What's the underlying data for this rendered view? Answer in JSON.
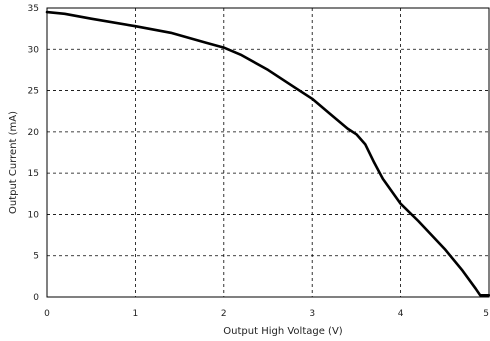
{
  "chart_data": {
    "type": "line",
    "title": "",
    "xlabel": "Output High Voltage (V)",
    "ylabel": "Output Current (mA)",
    "xlim": [
      0,
      5
    ],
    "ylim": [
      0,
      35
    ],
    "xticks": [
      "0",
      "1",
      "2",
      "3",
      "4",
      "5"
    ],
    "yticks": [
      "0",
      "5",
      "10",
      "15",
      "20",
      "25",
      "30",
      "35"
    ],
    "grid": true,
    "series": [
      {
        "x": [
          0,
          0.2,
          0.5,
          1.0,
          1.4,
          1.8,
          2.0,
          2.2,
          2.5,
          2.8,
          3.0,
          3.2,
          3.4,
          3.5,
          3.6,
          3.7,
          3.8,
          4.0,
          4.2,
          4.5,
          4.7,
          4.85,
          4.9,
          5.0
        ],
        "y": [
          34.5,
          34.3,
          33.7,
          32.8,
          32.0,
          30.8,
          30.2,
          29.3,
          27.5,
          25.4,
          24.0,
          22.2,
          20.4,
          19.7,
          18.5,
          16.3,
          14.3,
          11.3,
          9.2,
          5.8,
          3.2,
          1.0,
          0.2,
          0.2
        ]
      }
    ]
  }
}
